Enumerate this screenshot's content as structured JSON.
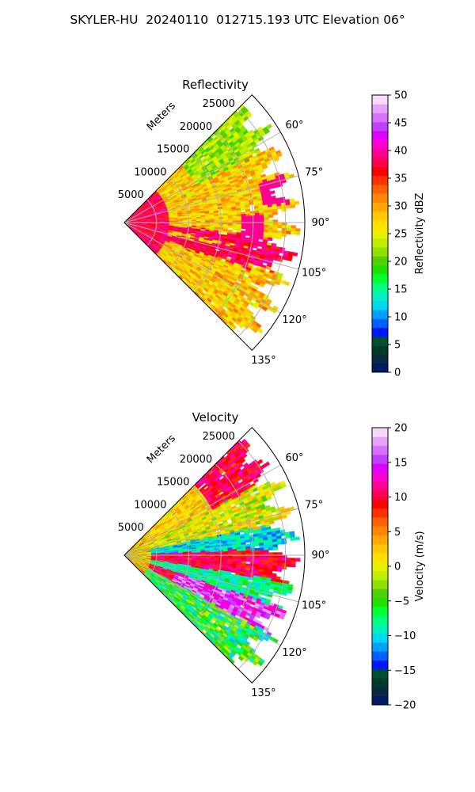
{
  "page": {
    "title": "SKYLER-HU  20240110  012715.193 UTC Elevation 06°"
  },
  "chart_data": [
    {
      "type": "heatmap",
      "subtype": "polar-sector (PPI)",
      "title": "Reflectivity",
      "radial_label": "Meters",
      "radial_ticks": [
        "5000",
        "10000",
        "15000",
        "20000",
        "25000"
      ],
      "range_max_m": 28000,
      "azimuth_range_deg": [
        45,
        135
      ],
      "azimuth_ticks": [
        "60°",
        "75°",
        "90°",
        "105°",
        "120°",
        "135°"
      ],
      "grid": true,
      "colorbar": {
        "label": "Reflectivity dBZ",
        "min": 0,
        "max": 50,
        "ticks": [
          "0",
          "5",
          "10",
          "15",
          "20",
          "25",
          "30",
          "35",
          "40",
          "45",
          "50"
        ],
        "colors": [
          "#001a66",
          "#0a2a40",
          "#003a2a",
          "#005030",
          "#0018ff",
          "#0060ff",
          "#00a0ff",
          "#00d8f0",
          "#00f0c0",
          "#00ff80",
          "#00ff30",
          "#20e000",
          "#50d000",
          "#90e000",
          "#c0ee00",
          "#e8f000",
          "#ffe000",
          "#ffc800",
          "#ffa800",
          "#ff8800",
          "#ff6000",
          "#ff3000",
          "#ff0000",
          "#ff0050",
          "#ff0090",
          "#ff00d0",
          "#e000ff",
          "#c040ff",
          "#d870ff",
          "#e8a0ff",
          "#f8d8ff"
        ]
      },
      "dominant_values_dBZ": {
        "near_center": 38,
        "main_field": 28,
        "north_edge": 22,
        "cores": 37
      }
    },
    {
      "type": "heatmap",
      "subtype": "polar-sector (PPI)",
      "title": "Velocity",
      "radial_label": "Meters",
      "radial_ticks": [
        "5000",
        "10000",
        "15000",
        "20000",
        "25000"
      ],
      "range_max_m": 28000,
      "azimuth_range_deg": [
        45,
        135
      ],
      "azimuth_ticks": [
        "60°",
        "75°",
        "90°",
        "105°",
        "120°",
        "135°"
      ],
      "grid": true,
      "colorbar": {
        "label": "Velocity (m/s)",
        "min": -20,
        "max": 20,
        "ticks": [
          "−20",
          "−15",
          "−10",
          "−5",
          "0",
          "5",
          "10",
          "15",
          "20"
        ],
        "colors": [
          "#001a66",
          "#0a2a40",
          "#003a2a",
          "#005030",
          "#0018ff",
          "#0060ff",
          "#00a0ff",
          "#00d8f0",
          "#00f0c0",
          "#00ff80",
          "#00ff30",
          "#20e000",
          "#50d000",
          "#90e000",
          "#c0ee00",
          "#e8f000",
          "#ffe000",
          "#ffc800",
          "#ffa800",
          "#ff8800",
          "#ff6000",
          "#ff3000",
          "#ff0000",
          "#ff0050",
          "#ff0090",
          "#ff00d0",
          "#e000ff",
          "#c040ff",
          "#d870ff",
          "#e8a0ff",
          "#f8d8ff"
        ]
      },
      "dominant_values_ms": {
        "north_band": 10,
        "northeast_band": 0,
        "center_band": -10,
        "east_band": 10,
        "south_band": 15
      }
    }
  ]
}
